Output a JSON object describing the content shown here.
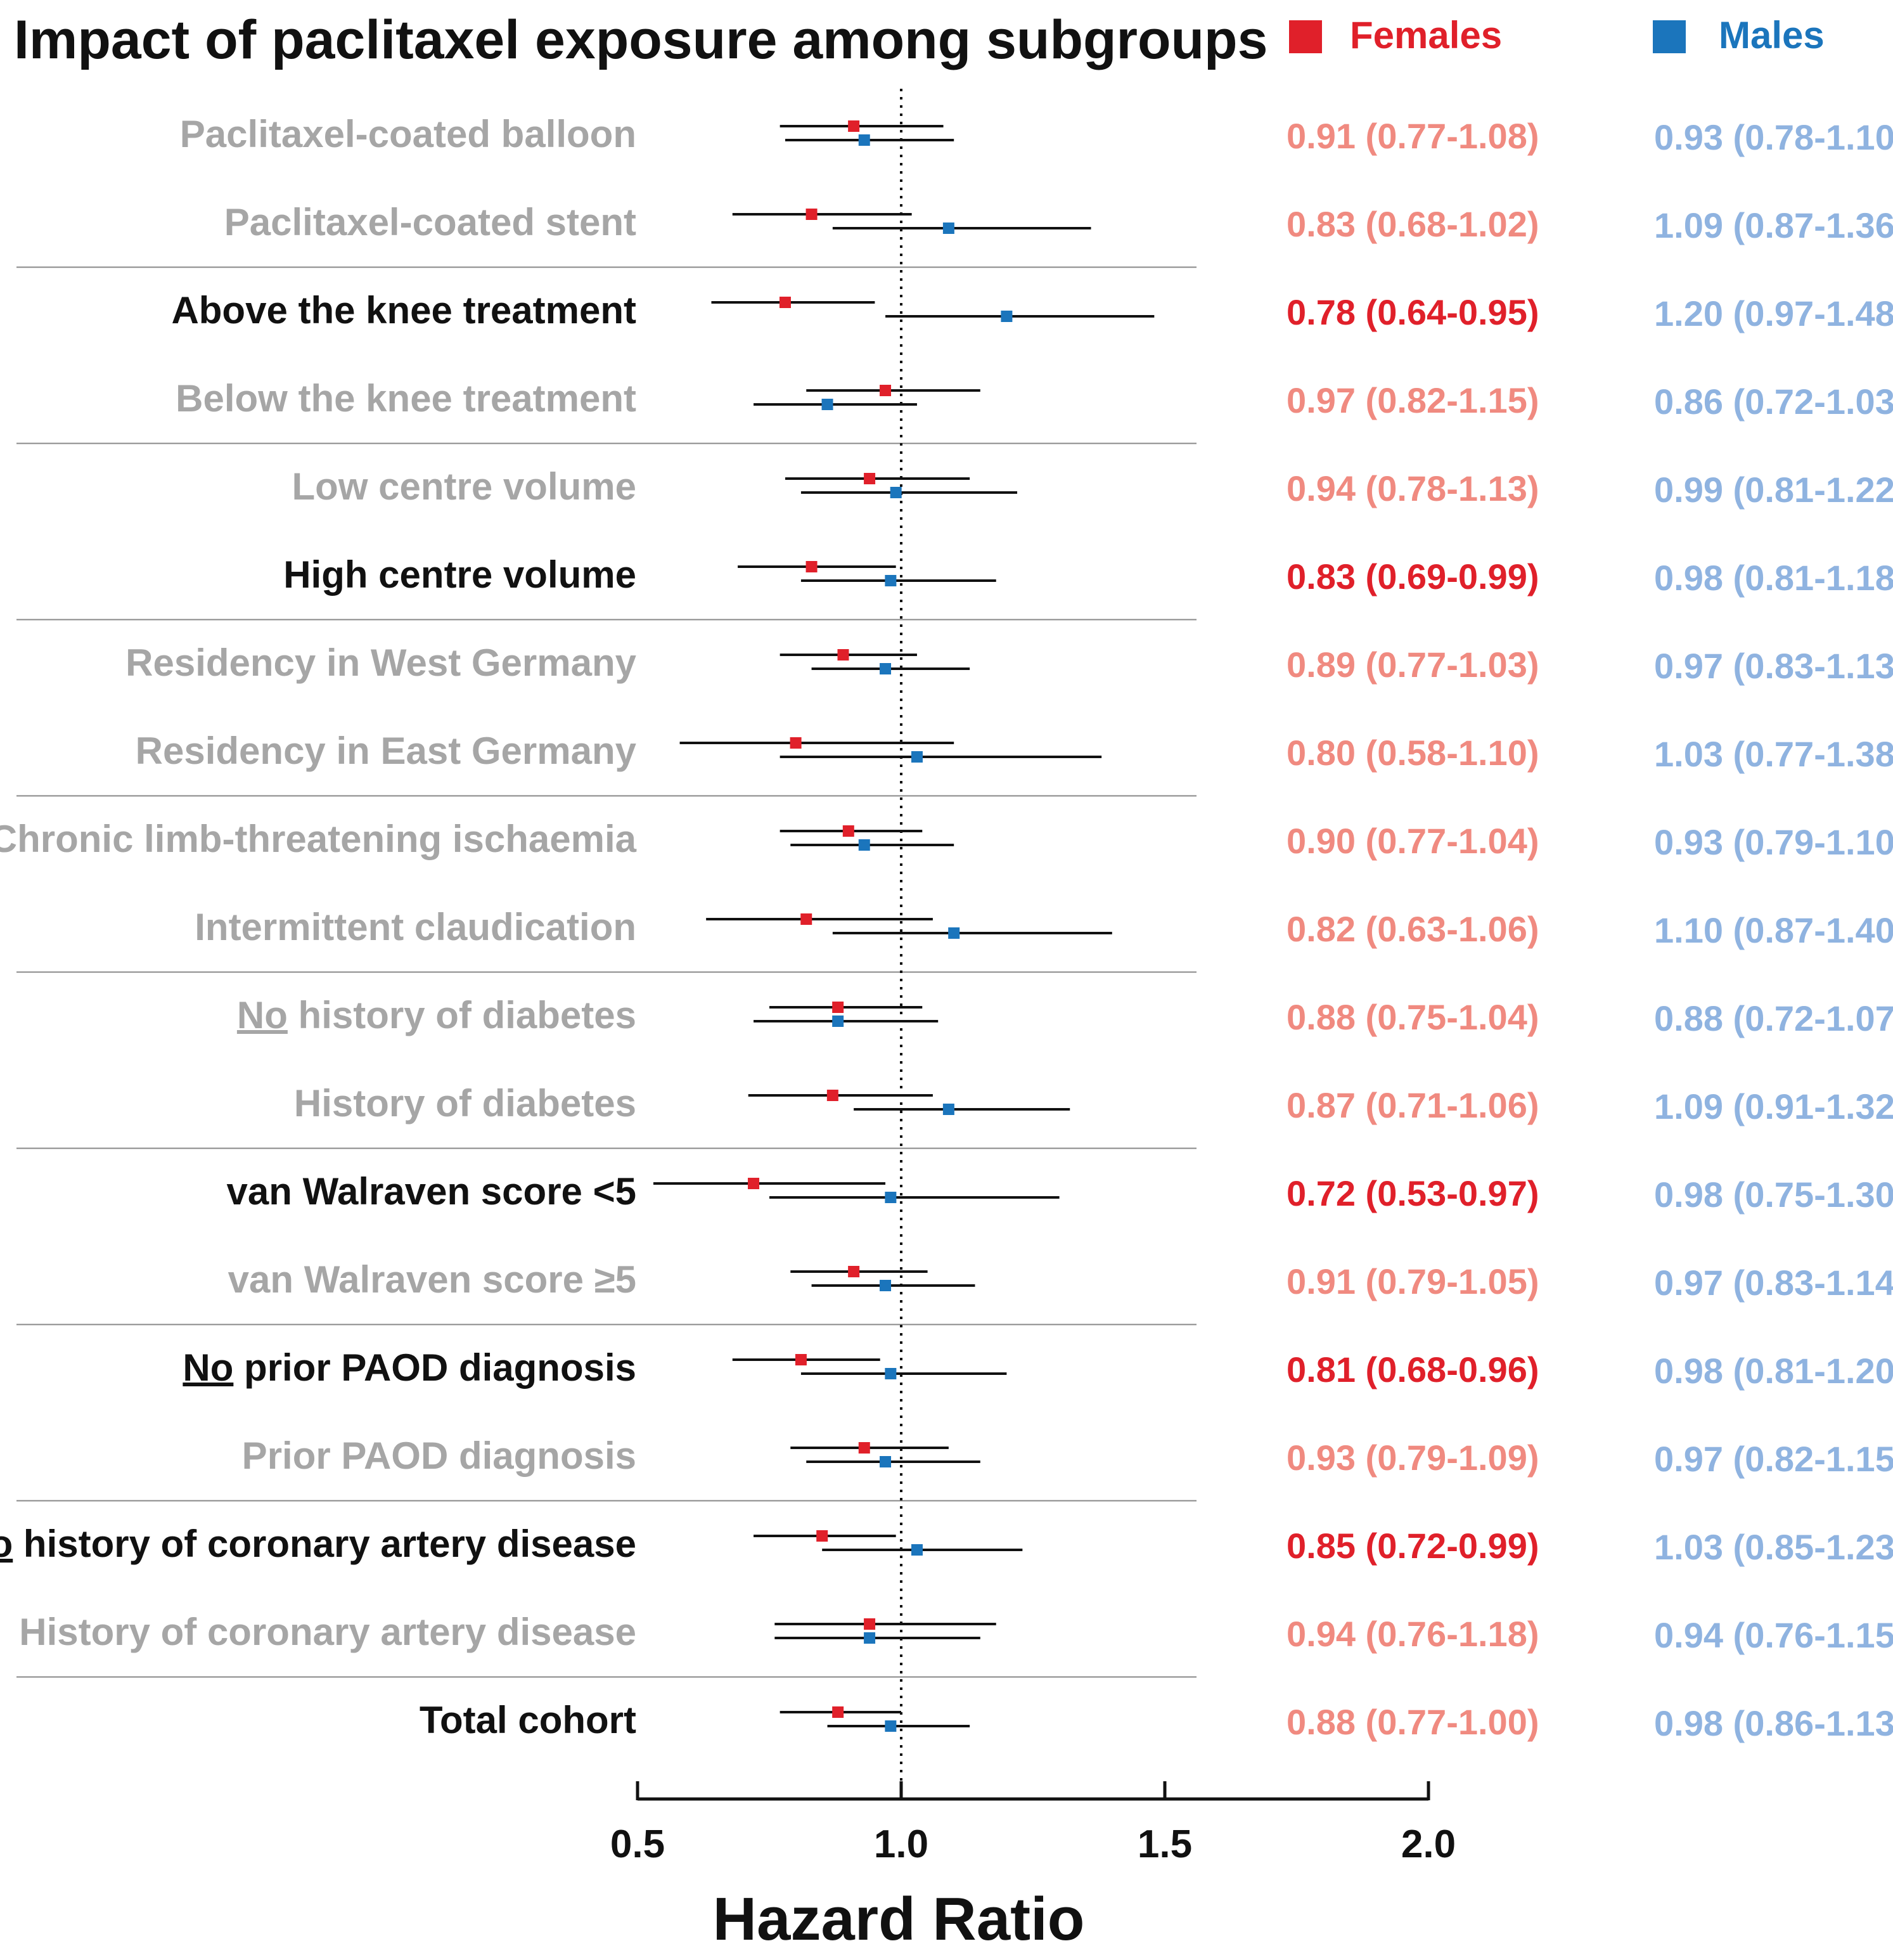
{
  "chart_data": {
    "type": "forest",
    "title": "Impact of paclitaxel exposure among subgroups",
    "xlabel": "Hazard Ratio",
    "xlim": [
      0.5,
      2.0
    ],
    "xticks": [
      0.5,
      1.0,
      1.5,
      2.0
    ],
    "tick_labels": [
      "0.5",
      "1.0",
      "1.5",
      "2.0"
    ],
    "reference_line": 1.0,
    "series": [
      {
        "name": "Females",
        "color": "#e0202a",
        "faded_color": "#f08a80"
      },
      {
        "name": "Males",
        "color": "#1b75bc",
        "faded_color": "#8fb3e0"
      }
    ],
    "label_colors": {
      "significant": "#111111",
      "nonsignificant": "#a6a6a6"
    },
    "rows": [
      {
        "label_pre": "",
        "label_underline": "",
        "label_post": "Paclitaxel-coated balloon",
        "significant": false,
        "group_end": false,
        "females": {
          "hr": 0.91,
          "lo": 0.77,
          "hi": 1.08,
          "text": "0.91 (0.77-1.08)",
          "significant": false
        },
        "males": {
          "hr": 0.93,
          "lo": 0.78,
          "hi": 1.1,
          "text": "0.93 (0.78-1.10)",
          "significant": false
        }
      },
      {
        "label_pre": "",
        "label_underline": "",
        "label_post": "Paclitaxel-coated stent",
        "significant": false,
        "group_end": true,
        "females": {
          "hr": 0.83,
          "lo": 0.68,
          "hi": 1.02,
          "text": "0.83 (0.68-1.02)",
          "significant": false
        },
        "males": {
          "hr": 1.09,
          "lo": 0.87,
          "hi": 1.36,
          "text": "1.09 (0.87-1.36)",
          "significant": false
        }
      },
      {
        "label_pre": "",
        "label_underline": "",
        "label_post": "Above the knee treatment",
        "significant": true,
        "group_end": false,
        "females": {
          "hr": 0.78,
          "lo": 0.64,
          "hi": 0.95,
          "text": "0.78 (0.64-0.95)",
          "significant": true
        },
        "males": {
          "hr": 1.2,
          "lo": 0.97,
          "hi": 1.48,
          "text": "1.20 (0.97-1.48)",
          "significant": false
        }
      },
      {
        "label_pre": "",
        "label_underline": "",
        "label_post": "Below the knee treatment",
        "significant": false,
        "group_end": true,
        "females": {
          "hr": 0.97,
          "lo": 0.82,
          "hi": 1.15,
          "text": "0.97 (0.82-1.15)",
          "significant": false
        },
        "males": {
          "hr": 0.86,
          "lo": 0.72,
          "hi": 1.03,
          "text": "0.86 (0.72-1.03)",
          "significant": false
        }
      },
      {
        "label_pre": "",
        "label_underline": "",
        "label_post": "Low centre volume",
        "significant": false,
        "group_end": false,
        "females": {
          "hr": 0.94,
          "lo": 0.78,
          "hi": 1.13,
          "text": "0.94 (0.78-1.13)",
          "significant": false
        },
        "males": {
          "hr": 0.99,
          "lo": 0.81,
          "hi": 1.22,
          "text": "0.99 (0.81-1.22)",
          "significant": false
        }
      },
      {
        "label_pre": "",
        "label_underline": "",
        "label_post": "High centre volume",
        "significant": true,
        "group_end": true,
        "females": {
          "hr": 0.83,
          "lo": 0.69,
          "hi": 0.99,
          "text": "0.83 (0.69-0.99)",
          "significant": true
        },
        "males": {
          "hr": 0.98,
          "lo": 0.81,
          "hi": 1.18,
          "text": "0.98 (0.81-1.18)",
          "significant": false
        }
      },
      {
        "label_pre": "",
        "label_underline": "",
        "label_post": "Residency in West Germany",
        "significant": false,
        "group_end": false,
        "females": {
          "hr": 0.89,
          "lo": 0.77,
          "hi": 1.03,
          "text": "0.89 (0.77-1.03)",
          "significant": false
        },
        "males": {
          "hr": 0.97,
          "lo": 0.83,
          "hi": 1.13,
          "text": "0.97 (0.83-1.13)",
          "significant": false
        }
      },
      {
        "label_pre": "",
        "label_underline": "",
        "label_post": "Residency in East Germany",
        "significant": false,
        "group_end": true,
        "females": {
          "hr": 0.8,
          "lo": 0.58,
          "hi": 1.1,
          "text": "0.80 (0.58-1.10)",
          "significant": false
        },
        "males": {
          "hr": 1.03,
          "lo": 0.77,
          "hi": 1.38,
          "text": "1.03 (0.77-1.38)",
          "significant": false
        }
      },
      {
        "label_pre": "",
        "label_underline": "",
        "label_post": "Chronic limb-threatening ischaemia",
        "significant": false,
        "group_end": false,
        "females": {
          "hr": 0.9,
          "lo": 0.77,
          "hi": 1.04,
          "text": "0.90 (0.77-1.04)",
          "significant": false
        },
        "males": {
          "hr": 0.93,
          "lo": 0.79,
          "hi": 1.1,
          "text": "0.93 (0.79-1.10)",
          "significant": false
        }
      },
      {
        "label_pre": "",
        "label_underline": "",
        "label_post": "Intermittent claudication",
        "significant": false,
        "group_end": true,
        "females": {
          "hr": 0.82,
          "lo": 0.63,
          "hi": 1.06,
          "text": "0.82 (0.63-1.06)",
          "significant": false
        },
        "males": {
          "hr": 1.1,
          "lo": 0.87,
          "hi": 1.4,
          "text": "1.10 (0.87-1.40)",
          "significant": false
        }
      },
      {
        "label_pre": "",
        "label_underline": "No",
        "label_post": " history of diabetes",
        "significant": false,
        "group_end": false,
        "females": {
          "hr": 0.88,
          "lo": 0.75,
          "hi": 1.04,
          "text": "0.88 (0.75-1.04)",
          "significant": false
        },
        "males": {
          "hr": 0.88,
          "lo": 0.72,
          "hi": 1.07,
          "text": "0.88 (0.72-1.07)",
          "significant": false
        }
      },
      {
        "label_pre": "",
        "label_underline": "",
        "label_post": "History of diabetes",
        "significant": false,
        "group_end": true,
        "females": {
          "hr": 0.87,
          "lo": 0.71,
          "hi": 1.06,
          "text": "0.87 (0.71-1.06)",
          "significant": false
        },
        "males": {
          "hr": 1.09,
          "lo": 0.91,
          "hi": 1.32,
          "text": "1.09 (0.91-1.32)",
          "significant": false
        }
      },
      {
        "label_pre": "",
        "label_underline": "",
        "label_post": "van Walraven score <5",
        "significant": true,
        "group_end": false,
        "females": {
          "hr": 0.72,
          "lo": 0.53,
          "hi": 0.97,
          "text": "0.72 (0.53-0.97)",
          "significant": true
        },
        "males": {
          "hr": 0.98,
          "lo": 0.75,
          "hi": 1.3,
          "text": "0.98 (0.75-1.30)",
          "significant": false
        }
      },
      {
        "label_pre": "",
        "label_underline": "",
        "label_post": "van Walraven score ≥5",
        "significant": false,
        "group_end": true,
        "females": {
          "hr": 0.91,
          "lo": 0.79,
          "hi": 1.05,
          "text": "0.91 (0.79-1.05)",
          "significant": false
        },
        "males": {
          "hr": 0.97,
          "lo": 0.83,
          "hi": 1.14,
          "text": "0.97 (0.83-1.14)",
          "significant": false
        }
      },
      {
        "label_pre": "",
        "label_underline": "No",
        "label_post": " prior PAOD diagnosis",
        "significant": true,
        "group_end": false,
        "females": {
          "hr": 0.81,
          "lo": 0.68,
          "hi": 0.96,
          "text": "0.81 (0.68-0.96)",
          "significant": true
        },
        "males": {
          "hr": 0.98,
          "lo": 0.81,
          "hi": 1.2,
          "text": "0.98 (0.81-1.20)",
          "significant": false
        }
      },
      {
        "label_pre": "",
        "label_underline": "",
        "label_post": "Prior PAOD diagnosis",
        "significant": false,
        "group_end": true,
        "females": {
          "hr": 0.93,
          "lo": 0.79,
          "hi": 1.09,
          "text": "0.93 (0.79-1.09)",
          "significant": false
        },
        "males": {
          "hr": 0.97,
          "lo": 0.82,
          "hi": 1.15,
          "text": "0.97 (0.82-1.15)",
          "significant": false
        }
      },
      {
        "label_pre": "",
        "label_underline": "No",
        "label_post": " history of coronary artery disease",
        "significant": true,
        "group_end": false,
        "females": {
          "hr": 0.85,
          "lo": 0.72,
          "hi": 0.99,
          "text": "0.85 (0.72-0.99)",
          "significant": true
        },
        "males": {
          "hr": 1.03,
          "lo": 0.85,
          "hi": 1.23,
          "text": "1.03 (0.85-1.23)",
          "significant": false
        }
      },
      {
        "label_pre": "",
        "label_underline": "",
        "label_post": "History of coronary artery disease",
        "significant": false,
        "group_end": true,
        "females": {
          "hr": 0.94,
          "lo": 0.76,
          "hi": 1.18,
          "text": "0.94 (0.76-1.18)",
          "significant": false
        },
        "males": {
          "hr": 0.94,
          "lo": 0.76,
          "hi": 1.15,
          "text": "0.94 (0.76-1.15)",
          "significant": false
        }
      },
      {
        "label_pre": "",
        "label_underline": "",
        "label_post": "Total cohort",
        "significant": true,
        "group_end": false,
        "females": {
          "hr": 0.88,
          "lo": 0.77,
          "hi": 1.0,
          "text": "0.88 (0.77-1.00)",
          "significant": false
        },
        "males": {
          "hr": 0.98,
          "lo": 0.86,
          "hi": 1.13,
          "text": "0.98 (0.86-1.13)",
          "significant": false
        }
      }
    ]
  }
}
